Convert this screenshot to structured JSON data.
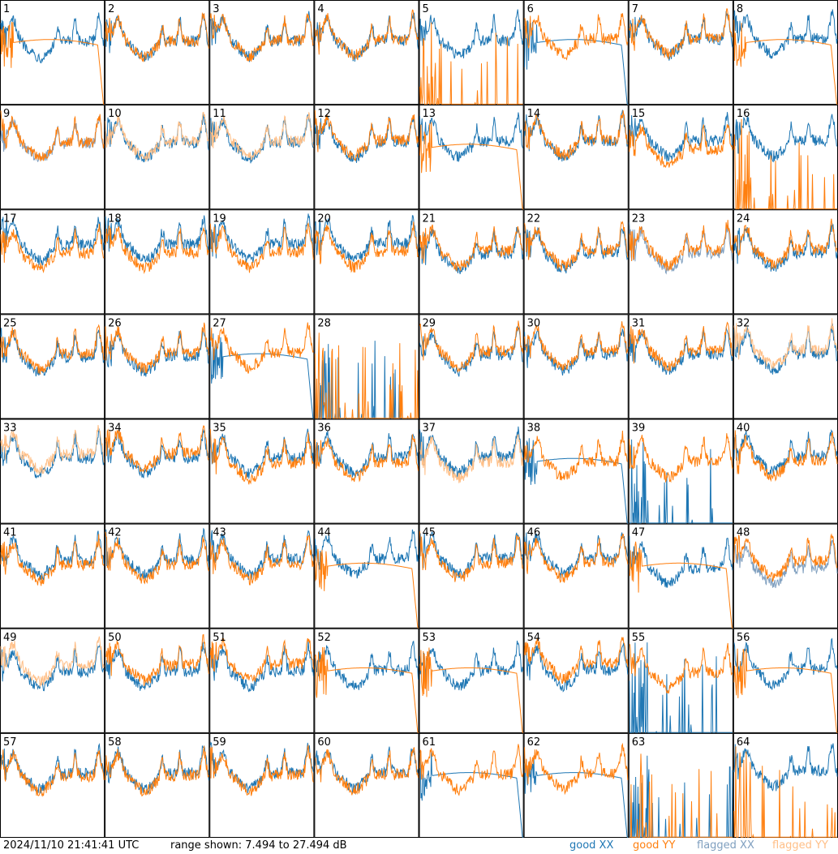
{
  "chart_data": {
    "type": "line",
    "layout": "small-multiples 8x8 grid",
    "grid": false,
    "legend_placement": "bottom-right",
    "panel_labels": [
      "1",
      "2",
      "3",
      "4",
      "5",
      "6",
      "7",
      "8",
      "9",
      "10",
      "11",
      "12",
      "13",
      "14",
      "15",
      "16",
      "17",
      "18",
      "19",
      "20",
      "21",
      "22",
      "23",
      "24",
      "25",
      "26",
      "27",
      "28",
      "29",
      "30",
      "31",
      "32",
      "33",
      "34",
      "35",
      "36",
      "37",
      "38",
      "39",
      "40",
      "41",
      "42",
      "43",
      "44",
      "45",
      "46",
      "47",
      "48",
      "49",
      "50",
      "51",
      "52",
      "53",
      "54",
      "55",
      "56",
      "57",
      "58",
      "59",
      "60",
      "61",
      "62",
      "63",
      "64"
    ],
    "ylim": [
      7.494,
      27.494
    ],
    "colors": {
      "good_xx": "#1f77b4",
      "good_yy": "#ff7f0e",
      "flagged_xx": "#7f9fbf",
      "flagged_yy": "#ffbf87"
    },
    "flagged_xx_panels": [
      9,
      23,
      48
    ],
    "flagged_yy_panels": [
      10,
      11,
      32,
      33,
      37,
      49
    ],
    "legend": {
      "good_xx": "good XX",
      "good_yy": "good YY",
      "flagged_xx": "flagged XX",
      "flagged_yy": "flagged YY"
    }
  },
  "footer": {
    "timestamp": "2024/11/10 21:41:41 UTC",
    "range_text": "range shown: 7.494 to 27.494 dB"
  }
}
